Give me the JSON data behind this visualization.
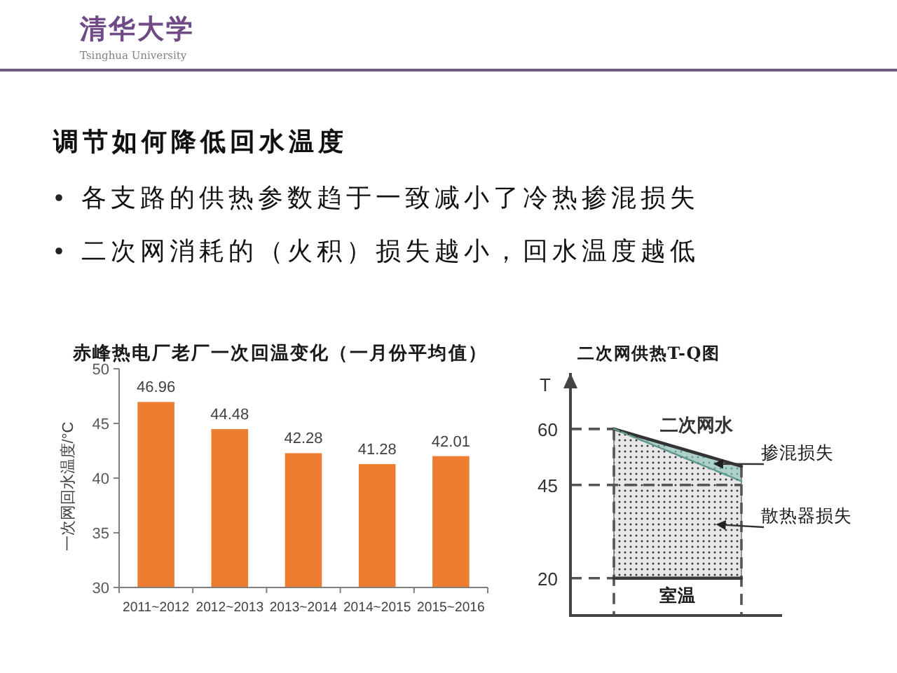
{
  "chart_data": [
    {
      "type": "other",
      "annotations": [
        "清华大学",
        "Tsinghua University"
      ]
    },
    {
      "type": "other",
      "title": "调节如何降低回水温度",
      "annotations": [
        "各支路的供热参数趋于一致减小了冷热掺混损失",
        "二次网消耗的（火积）损失越小，回水温度越低"
      ]
    },
    {
      "type": "bar",
      "title": "赤峰热电厂老厂一次回温变化（一月份平均值）",
      "ylabel": "一次网回水温度/°C",
      "categories": [
        "2011~2012",
        "2012~2013",
        "2013~2014",
        "2014~2015",
        "2015~2016"
      ],
      "values": [
        46.96,
        44.48,
        42.28,
        41.28,
        42.01
      ],
      "color": "#ed7d31",
      "ylim": [
        30,
        50
      ],
      "yticks": [
        30,
        35,
        40,
        45,
        50
      ],
      "data_labels": true
    },
    {
      "type": "line",
      "title": "二次网供热T-Q图",
      "ylabel": "T",
      "categories": [
        null,
        null
      ],
      "tick_labels": "y",
      "ylim": [
        10,
        75
      ],
      "yticks": [
        20,
        45,
        60
      ],
      "series": [
        {
          "name": "二次网水",
          "color": "#333333",
          "values": [
            60,
            50
          ]
        },
        {
          "color": "#5f9e95",
          "line_style": "dashed",
          "values": [
            60,
            46
          ],
          "lower": [
            60,
            46
          ],
          "upper": [
            60,
            50
          ]
        },
        {
          "color": "#3a3a3a",
          "values": [
            20,
            20
          ],
          "lower": [
            20,
            20
          ],
          "upper": [
            60,
            46
          ]
        }
      ],
      "ref_lines": [
        {
          "axis": "y",
          "value": 60,
          "line_style": "dashed"
        },
        {
          "axis": "y",
          "value": 45,
          "line_style": "dashed"
        },
        {
          "axis": "y",
          "value": 20,
          "line_style": "dashed"
        }
      ],
      "annotations": [
        "掺混损失",
        "散热器损失",
        "室温"
      ]
    }
  ]
}
